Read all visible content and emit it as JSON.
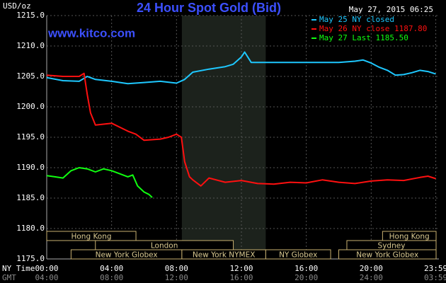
{
  "chart_data": {
    "type": "line",
    "title": "24 Hour Spot Gold (Bid)",
    "timestamp": "May 27, 2015 06:25",
    "source": "www.kitco.com",
    "ylabel": "USD/oz",
    "xlabel": "NY Time",
    "xlabel2": "GMT",
    "xlim": [
      0,
      24
    ],
    "ylim": [
      1175,
      1215
    ],
    "yticks": [
      {
        "value": 1175,
        "label": "1175.0"
      },
      {
        "value": 1180,
        "label": "1180.0"
      },
      {
        "value": 1185,
        "label": "1185.0"
      },
      {
        "value": 1190,
        "label": "1190.0"
      },
      {
        "value": 1195,
        "label": "1195.0"
      },
      {
        "value": 1200,
        "label": "1200.0"
      },
      {
        "value": 1205,
        "label": "1205.0"
      },
      {
        "value": 1210,
        "label": "1210.0"
      },
      {
        "value": 1215,
        "label": "1215.0"
      }
    ],
    "xticks": [
      {
        "value": 0,
        "label": "00:00"
      },
      {
        "value": 4,
        "label": "04:00"
      },
      {
        "value": 8,
        "label": "08:00"
      },
      {
        "value": 12,
        "label": "12:00"
      },
      {
        "value": 16,
        "label": "16:00"
      },
      {
        "value": 20,
        "label": "20:00"
      },
      {
        "value": 23.98,
        "label": "23:59"
      }
    ],
    "xticks2": [
      {
        "value": 0,
        "label": "04:00"
      },
      {
        "value": 4,
        "label": "08:00"
      },
      {
        "value": 8,
        "label": "12:00"
      },
      {
        "value": 12,
        "label": "16:00"
      },
      {
        "value": 16,
        "label": "20:00"
      },
      {
        "value": 20,
        "label": "24:00"
      },
      {
        "value": 23.98,
        "label": "03:59"
      }
    ],
    "grid": true,
    "shaded_span": [
      8.33,
      13.5
    ],
    "session_rows": [
      [
        {
          "label": "Hong Kong",
          "start": 0,
          "end": 5.5
        },
        {
          "label": "Hong Kong",
          "start": 20.7,
          "end": 24
        }
      ],
      [
        {
          "label": "London",
          "start": 3,
          "end": 11.5
        },
        {
          "label": "Sydney",
          "start": 18.5,
          "end": 24
        }
      ],
      [
        {
          "label": "New York Globex",
          "start": 1.5,
          "end": 8.33
        },
        {
          "label": "New York NYMEX",
          "start": 8.33,
          "end": 13.5
        },
        {
          "label": "NY Globex",
          "start": 13.5,
          "end": 17.5
        },
        {
          "label": "New York Globex",
          "start": 18,
          "end": 24
        }
      ]
    ],
    "series": [
      {
        "name": "May 25 NY closed",
        "color": "#1ec8ff",
        "x": [
          0,
          1,
          2,
          2.5,
          3,
          4,
          5,
          6,
          7,
          8,
          8.5,
          9,
          10,
          11,
          11.5,
          12,
          12.2,
          12.6,
          14,
          16,
          18,
          19,
          19.5,
          20,
          20.5,
          21,
          21.5,
          22,
          22.5,
          23,
          23.5,
          23.98
        ],
        "values": [
          1204.8,
          1204.3,
          1204.2,
          1205,
          1204.5,
          1204.2,
          1203.8,
          1204,
          1204.2,
          1203.9,
          1204.5,
          1205.7,
          1206.2,
          1206.6,
          1207,
          1208.2,
          1209,
          1207.3,
          1207.3,
          1207.3,
          1207.3,
          1207.5,
          1207.7,
          1207.2,
          1206.5,
          1206,
          1205.2,
          1205.3,
          1205.6,
          1206,
          1205.8,
          1205.4
        ]
      },
      {
        "name": "May 26 NY close 1187.80",
        "color": "#ff1010",
        "x": [
          0,
          1,
          2,
          2.3,
          2.5,
          2.7,
          3,
          4,
          5,
          5.5,
          6,
          7,
          7.5,
          8,
          8.3,
          8.5,
          8.8,
          9,
          9.5,
          10,
          11,
          12,
          13,
          14,
          15,
          16,
          17,
          18,
          19,
          20,
          21,
          22,
          23,
          23.5,
          23.98
        ],
        "values": [
          1205.2,
          1205,
          1205,
          1205.5,
          1202,
          1199,
          1197,
          1197.3,
          1196,
          1195.5,
          1194.5,
          1194.7,
          1195,
          1195.5,
          1195,
          1191,
          1188.5,
          1188,
          1187,
          1188.3,
          1187.6,
          1187.9,
          1187.4,
          1187.3,
          1187.6,
          1187.5,
          1188,
          1187.6,
          1187.4,
          1187.8,
          1188,
          1187.9,
          1188.4,
          1188.6,
          1188.2
        ]
      },
      {
        "name": "May 27 Last 1185.50",
        "color": "#10ff10",
        "x": [
          0,
          0.5,
          1,
          1.5,
          2,
          2.5,
          3,
          3.5,
          4,
          4.5,
          5,
          5.3,
          5.6,
          6,
          6.3,
          6.5
        ],
        "values": [
          1188.7,
          1188.5,
          1188.3,
          1189.5,
          1190,
          1189.8,
          1189.3,
          1189.8,
          1189.5,
          1189,
          1188.5,
          1188.8,
          1187,
          1186,
          1185.6,
          1185.1
        ]
      }
    ]
  }
}
